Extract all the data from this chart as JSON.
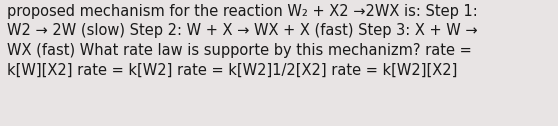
{
  "background_color": "#e8e4e4",
  "text_color": "#1a1a1a",
  "fontsize": 10.5,
  "font_family": "DejaVu Sans",
  "fig_width": 5.58,
  "fig_height": 1.26,
  "dpi": 100,
  "line1": "proposed mechanism for the reaction W₂ + X2 →2WX is: Step 1:",
  "line2": "W2 → 2W (slow) Step 2: W + X → WX + X (fast) Step 3: X + W →",
  "line3": "WX (fast) What rate law is supporte by this mechanizm? rate =",
  "line4": "k[W][X2] rate = k[W2] rate = k[W2]1/2[X2] rate = k[W2][X2]"
}
